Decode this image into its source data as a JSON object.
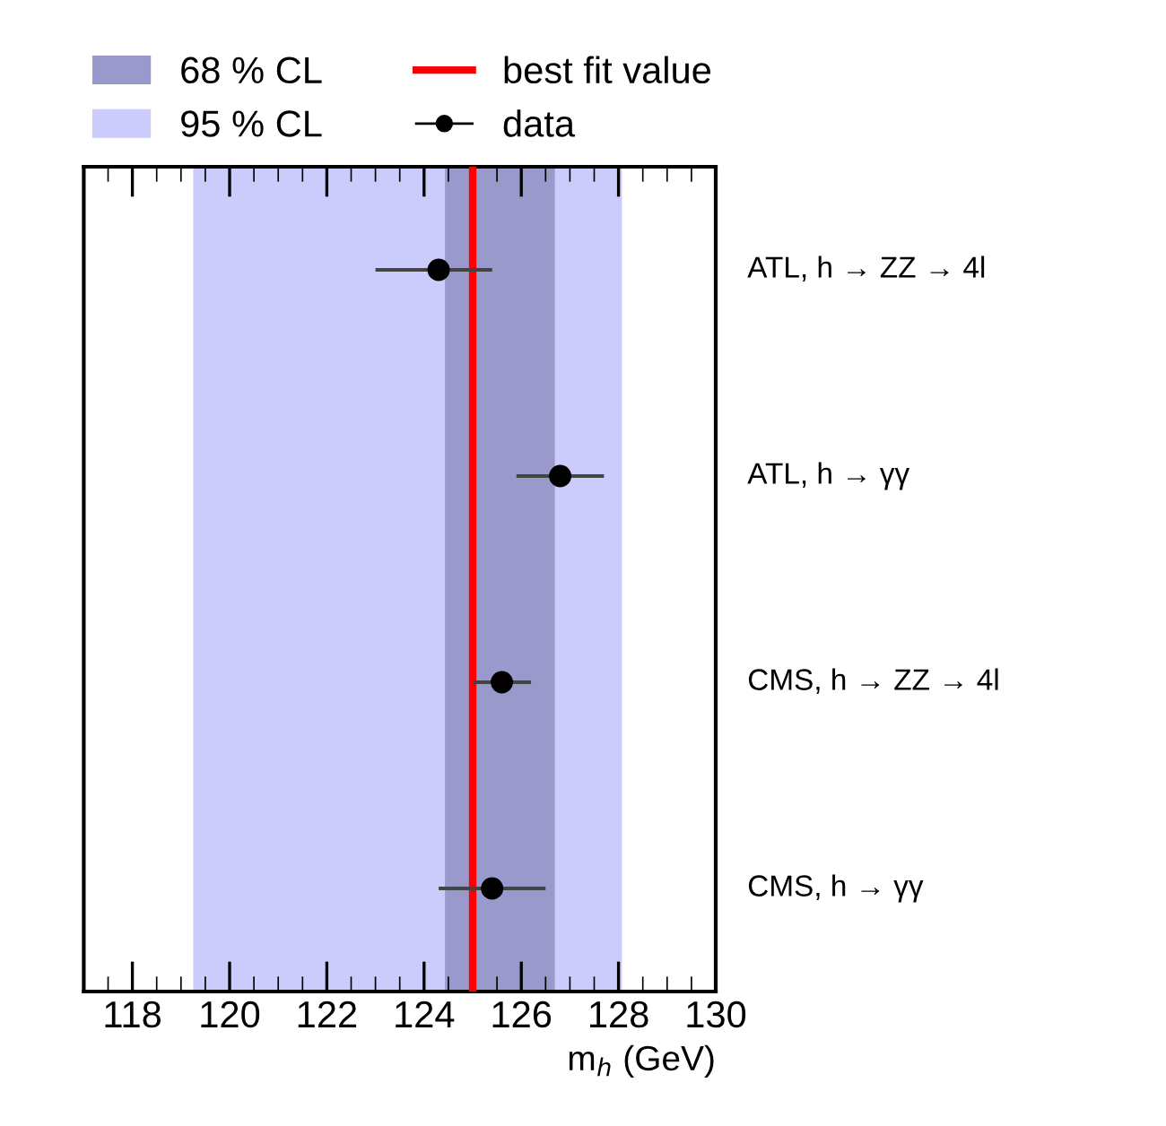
{
  "chart_data": {
    "type": "scatter",
    "orientation": "horizontal",
    "xlabel": "m$_{h}$ (GeV)",
    "categories": [
      "ATL, h → ZZ → 4l",
      "ATL, h → γγ",
      "CMS, h → ZZ → 4l",
      "CMS, h → γγ"
    ],
    "series": [
      {
        "name": "data",
        "color": "#000000",
        "values": [
          124.3,
          126.8,
          125.6,
          125.4
        ],
        "errors": [
          [
            123.0,
            125.4
          ],
          [
            125.9,
            127.7
          ],
          [
            125.0,
            126.2
          ],
          [
            124.3,
            126.5
          ]
        ]
      }
    ],
    "bands": [
      {
        "axis": "x",
        "from": 119.25,
        "to": 128.07,
        "label": "95 % CL",
        "color": "#ccccfc"
      },
      {
        "axis": "x",
        "from": 124.43,
        "to": 126.69,
        "label": "68 % CL",
        "color": "#9999cc"
      }
    ],
    "ref_lines": [
      {
        "axis": "x",
        "value": 125.0,
        "label": "best fit value",
        "color": "#ff0000"
      }
    ],
    "xlim": [
      117,
      130
    ],
    "xticks": [
      118,
      120,
      122,
      124,
      126,
      128,
      130
    ],
    "marker": "circle",
    "legend": "top",
    "grid": false,
    "tick_labels": "x"
  }
}
